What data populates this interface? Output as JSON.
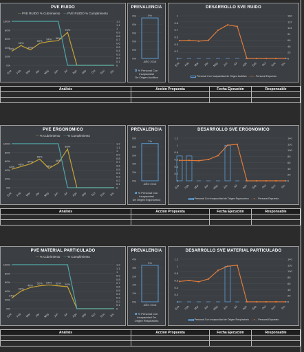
{
  "sections": [
    {
      "id": "ruido",
      "pve_title": "PVE RUIDO",
      "pve_legend": [
        "PVE RUIDO % Cubrimiento",
        "PVE RUIDO % Cumplimiento"
      ],
      "prev_title": "PREVALENCIA",
      "prev_value": "0%",
      "prev_cat": "AÑO 2016",
      "prev_legend": [
        "% Personal Con Incapacidad",
        "De Origen Auditiva"
      ],
      "sve_title": "DESARROLLO SVE RUIDO",
      "sve_legend_bar": "Personal Con Incapacidad de Origen Auditiva",
      "sve_legend_line": "Personal Expuesto",
      "table_headers": [
        "Análisis",
        "Acción Propuesta",
        "Fecha Ejecución",
        "Responsable"
      ]
    },
    {
      "id": "ergo",
      "pve_title": "PVE ERGONOMICO",
      "pve_legend": [
        "% Cubrimiento",
        "% Cumplimiento"
      ],
      "prev_title": "PREVALENCIA",
      "prev_value": "7%",
      "prev_cat": "AÑO 2016",
      "prev_legend": [
        "% Personal Con Incapacidad",
        "De Origen Ergonomico"
      ],
      "sve_title": "DESARROLLO SVE ERGONOMICO",
      "sve_legend_bar": "Personal Con Incapacidad de Origen Ergonomico",
      "sve_legend_line": "Personal Expuesto",
      "table_headers": [
        "Análisis",
        "Acción Propuesta",
        "Fecha Ejecución",
        "Responsable"
      ]
    },
    {
      "id": "mat",
      "pve_title": "PVE MATERIAL PARTICULADO",
      "pve_legend": [
        "% Cubrimiento",
        "% Cumplimiento"
      ],
      "prev_title": "PREVALENCIA",
      "prev_value": "3%",
      "prev_cat": "AÑO 2016",
      "prev_legend": [
        "% Personal Con",
        "Incapacidad De",
        "Origen Respiratorio"
      ],
      "sve_title": "DESARROLLO SVE MATERIAL PARTICULADO",
      "sve_legend_bar": "Personal Con Incapacidad de Origen Respiratorio",
      "sve_legend_line": "Personal Expuesto",
      "table_headers": [
        "Análisis",
        "Acción Propuesta",
        "Fecha Ejecución",
        "Responsable"
      ]
    }
  ],
  "colors": {
    "cubrimiento": "#c9a431",
    "cumplimiento": "#4fa6a6",
    "expuesto": "#e07b39",
    "incapacidad": "#5b9bd5"
  },
  "chart_data": [
    {
      "type": "line",
      "title": "PVE RUIDO",
      "x": [
        "Ene",
        "Feb",
        "Mar",
        "Abr",
        "May",
        "Jun",
        "Jul",
        "Ago",
        "Sep",
        "Oct",
        "Nov",
        "Dic"
      ],
      "series": [
        {
          "name": "PVE RUIDO % Cubrimiento",
          "values": [
            32,
            45,
            35,
            50,
            54,
            56,
            75,
            0,
            0,
            0,
            0,
            0
          ]
        },
        {
          "name": "PVE RUIDO % Cumplimiento",
          "values": [
            100,
            100,
            100,
            100,
            100,
            100,
            0,
            0,
            0,
            0,
            0,
            0
          ]
        }
      ],
      "ylim": [
        0,
        100
      ],
      "y2lim": [
        0,
        1.2
      ]
    },
    {
      "type": "bar",
      "title": "PREVALENCIA",
      "categories": [
        "AÑO 2016"
      ],
      "series": [
        {
          "name": "% Personal Con Incapacidad De Origen Auditiva",
          "values": [
            0
          ]
        }
      ],
      "ylim": [
        0,
        0.1
      ]
    },
    {
      "type": "line",
      "title": "DESARROLLO SVE RUIDO",
      "x": [
        "Ene",
        "Feb",
        "Mar",
        "Abr",
        "May",
        "Jun",
        "Jul",
        "Ago",
        "Sep",
        "Oct",
        "Nov",
        "Dic"
      ],
      "series": [
        {
          "name": "Personal Con Incapacidad de Origen Auditiva",
          "values": [
            0,
            0,
            0,
            0,
            0,
            0,
            0,
            0,
            0,
            0,
            0,
            0
          ]
        },
        {
          "name": "Personal Expuesto",
          "values": [
            67,
            68,
            65,
            68,
            106,
            126,
            120,
            0,
            0,
            0,
            0,
            0
          ]
        }
      ],
      "ylim": [
        0,
        1
      ],
      "y2lim": [
        0,
        160
      ]
    },
    {
      "type": "line",
      "title": "PVE ERGONOMICO",
      "x": [
        "Ene",
        "Feb",
        "Mar",
        "Abr",
        "May",
        "Jun",
        "Jul",
        "Ago",
        "Sep",
        "Oct",
        "Nov",
        "Dic"
      ],
      "series": [
        {
          "name": "% Cubrimiento",
          "values": [
            42,
            48,
            54,
            65,
            44,
            56,
            88,
            0,
            0,
            0,
            0,
            0
          ]
        },
        {
          "name": "% Cumplimiento",
          "values": [
            100,
            100,
            100,
            100,
            100,
            100,
            0,
            0,
            0,
            0,
            0,
            0
          ]
        }
      ],
      "ylim": [
        0,
        100
      ],
      "y2lim": [
        0,
        1.2
      ]
    },
    {
      "type": "bar",
      "title": "PREVALENCIA",
      "categories": [
        "AÑO 2016"
      ],
      "series": [
        {
          "name": "% Personal Con Incapacidad De Origen Ergonomico",
          "values": [
            7
          ]
        }
      ],
      "ylim": [
        0,
        8
      ]
    },
    {
      "type": "line",
      "title": "DESARROLLO SVE ERGONOMICO",
      "x": [
        "Ene",
        "Feb",
        "Mar",
        "Abr",
        "May",
        "Jun",
        "Jul",
        "Ago",
        "Sep",
        "Oct",
        "Nov",
        "Dic"
      ],
      "series": [
        {
          "name": "Personal Con Incapacidad de Origen Ergonomico",
          "values": [
            0.7,
            0.7,
            0,
            0,
            0,
            1,
            0,
            0,
            0,
            0,
            0,
            0
          ]
        },
        {
          "name": "Personal Expuesto",
          "values": [
            67,
            67,
            66,
            70,
            83,
            117,
            120,
            0,
            0,
            0,
            0,
            0
          ]
        }
      ],
      "ylim": [
        0,
        1.2
      ],
      "y2lim": [
        0,
        140
      ]
    },
    {
      "type": "line",
      "title": "PVE MATERIAL PARTICULADO",
      "x": [
        "Ene",
        "Feb",
        "Mar",
        "Abr",
        "May",
        "Jun",
        "Jul",
        "Ago",
        "Sep",
        "Oct",
        "Nov",
        "Dic"
      ],
      "series": [
        {
          "name": "% Cubrimiento",
          "values": [
            24,
            40,
            48,
            52,
            54,
            52,
            50,
            0,
            0,
            0,
            0,
            0
          ]
        },
        {
          "name": "% Cumplimiento",
          "values": [
            100,
            100,
            100,
            100,
            100,
            100,
            100,
            0,
            0,
            0,
            0,
            0
          ]
        }
      ],
      "ylim": [
        0,
        100
      ],
      "y2lim": [
        0,
        1.2
      ]
    },
    {
      "type": "bar",
      "title": "PREVALENCIA",
      "categories": [
        "AÑO 2016"
      ],
      "series": [
        {
          "name": "% Personal Con Incapacidad De Origen Respiratorio",
          "values": [
            3
          ]
        }
      ],
      "ylim": [
        0,
        3.5
      ]
    },
    {
      "type": "line",
      "title": "DESARROLLO SVE MATERIAL PARTICULADO",
      "x": [
        "Ene",
        "Feb",
        "Mar",
        "Abr",
        "May",
        "Jun",
        "Jul",
        "Ago",
        "Sep",
        "Oct",
        "Nov",
        "Dic"
      ],
      "series": [
        {
          "name": "Personal Con Incapacidad de Origen Respiratorio",
          "values": [
            0,
            0,
            0,
            0,
            0,
            1,
            0,
            0,
            0,
            0,
            0,
            0
          ]
        },
        {
          "name": "Personal Expuesto",
          "values": [
            67,
            70,
            66,
            75,
            103,
            117,
            120,
            0,
            0,
            0,
            0,
            0
          ]
        }
      ],
      "ylim": [
        0,
        1.2
      ],
      "y2lim": [
        0,
        140
      ]
    }
  ]
}
